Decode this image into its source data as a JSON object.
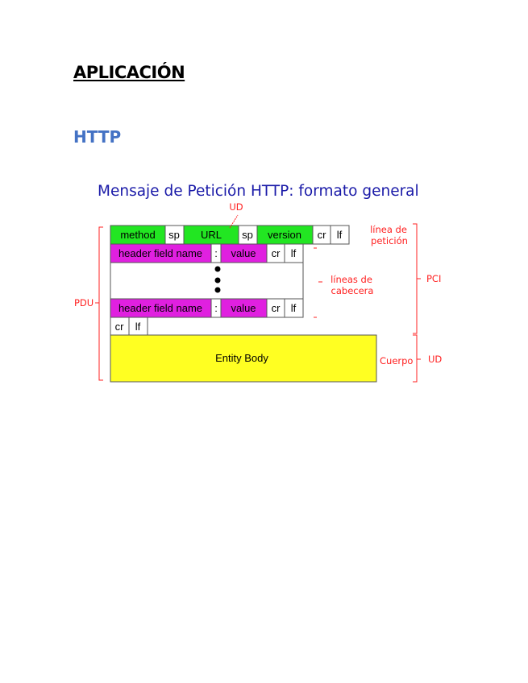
{
  "document": {
    "heading": "APLICACIÓN",
    "subheading": "HTTP"
  },
  "diagram": {
    "title": "Mensaje de Petición HTTP: formato general",
    "request_line": [
      "method",
      "sp",
      "URL",
      "sp",
      "version",
      "cr",
      "lf"
    ],
    "header_line": [
      "header field name",
      ":",
      "value",
      "cr",
      "lf"
    ],
    "end_line": [
      "cr",
      "lf"
    ],
    "body": "Entity Body",
    "annotations": {
      "ud_top": "UD",
      "request_line_label_1": "línea de",
      "request_line_label_2": "petición",
      "header_lines_label_1": "líneas de",
      "header_lines_label_2": "cabecera",
      "pdu": "PDU",
      "pci": "PCI",
      "body_label": "Cuerpo",
      "ud_body": "UD"
    },
    "colors": {
      "request_line": "#22e622",
      "header_line": "#e020e0",
      "body": "#ffff22",
      "annotation": "#ff2020",
      "title": "#1a1aa8"
    }
  }
}
